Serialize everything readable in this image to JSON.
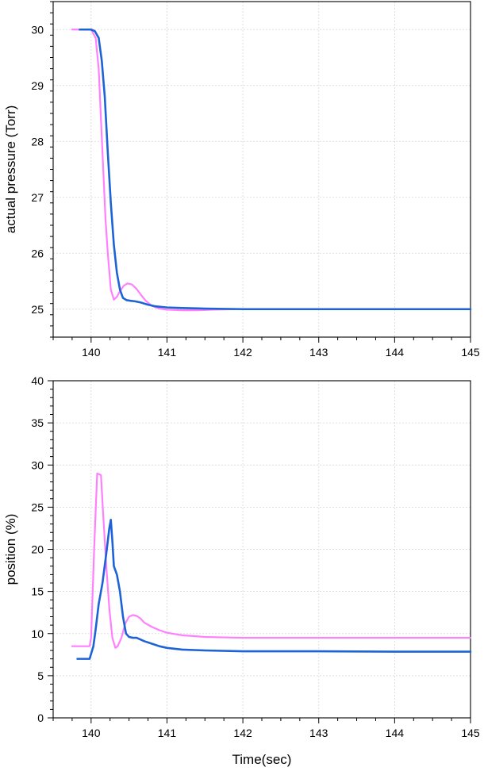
{
  "chart_data": [
    {
      "type": "line",
      "title": "",
      "xlabel": "",
      "ylabel": "actual pressure (Torr)",
      "xlim": [
        139.5,
        145
      ],
      "ylim": [
        24.5,
        30.5
      ],
      "xticks": [
        140,
        141,
        142,
        143,
        144,
        145
      ],
      "yticks": [
        25,
        26,
        27,
        28,
        29,
        30
      ],
      "grid": true,
      "series": [
        {
          "color": "#ff80ff",
          "x": [
            139.75,
            139.8,
            140.0,
            140.06,
            140.1,
            140.13,
            140.16,
            140.19,
            140.22,
            140.26,
            140.3,
            140.34,
            140.38,
            140.43,
            140.48,
            140.54,
            140.6,
            140.66,
            140.72,
            140.8,
            140.9,
            141.0,
            141.2,
            141.4,
            141.6,
            141.9
          ],
          "y": [
            30.0,
            30.0,
            30.0,
            29.85,
            29.3,
            28.4,
            27.5,
            26.6,
            26.0,
            25.35,
            25.17,
            25.22,
            25.32,
            25.42,
            25.46,
            25.44,
            25.36,
            25.25,
            25.15,
            25.06,
            25.01,
            24.99,
            24.98,
            24.98,
            24.99,
            25.0
          ]
        },
        {
          "color": "#1e63d6",
          "x": [
            139.85,
            139.9,
            140.0,
            140.05,
            140.1,
            140.14,
            140.18,
            140.22,
            140.26,
            140.3,
            140.34,
            140.38,
            140.42,
            140.47,
            140.52,
            140.58,
            140.65,
            140.75,
            140.85,
            141.0,
            141.2,
            141.5,
            142.0,
            143.0,
            144.0,
            145.0
          ],
          "y": [
            30.0,
            30.0,
            30.0,
            29.97,
            29.85,
            29.45,
            28.8,
            27.8,
            26.9,
            26.15,
            25.65,
            25.35,
            25.2,
            25.16,
            25.15,
            25.14,
            25.12,
            25.08,
            25.05,
            25.03,
            25.02,
            25.01,
            25.0,
            25.0,
            25.0,
            25.0
          ]
        }
      ]
    },
    {
      "type": "line",
      "title": "",
      "xlabel": "Time(sec)",
      "ylabel": "position (%)",
      "xlim": [
        139.5,
        145
      ],
      "ylim": [
        0,
        40
      ],
      "xticks": [
        140,
        141,
        142,
        143,
        144,
        145
      ],
      "yticks": [
        0,
        5,
        10,
        15,
        20,
        25,
        30,
        35,
        40
      ],
      "grid": true,
      "series": [
        {
          "color": "#ff80ff",
          "x": [
            139.75,
            139.9,
            139.98,
            140.0,
            140.04,
            140.08,
            140.13,
            140.16,
            140.2,
            140.24,
            140.28,
            140.32,
            140.35,
            140.4,
            140.45,
            140.5,
            140.55,
            140.6,
            140.65,
            140.7,
            140.8,
            140.9,
            141.0,
            141.2,
            141.5,
            142.0,
            143.0,
            144.0,
            145.0
          ],
          "y": [
            8.5,
            8.5,
            8.5,
            9.5,
            20.0,
            29.0,
            28.8,
            24.0,
            18.0,
            13.0,
            9.5,
            8.3,
            8.5,
            9.5,
            11.2,
            12.0,
            12.2,
            12.1,
            11.8,
            11.3,
            10.8,
            10.4,
            10.1,
            9.8,
            9.6,
            9.5,
            9.5,
            9.5,
            9.5
          ]
        },
        {
          "color": "#1e63d6",
          "x": [
            139.82,
            139.95,
            139.98,
            140.03,
            140.06,
            140.1,
            140.15,
            140.2,
            140.24,
            140.26,
            140.28,
            140.3,
            140.34,
            140.38,
            140.42,
            140.46,
            140.5,
            140.55,
            140.6,
            140.7,
            140.8,
            140.9,
            141.0,
            141.2,
            141.5,
            142.0,
            143.0,
            144.0,
            145.0
          ],
          "y": [
            7.0,
            7.0,
            7.0,
            8.5,
            10.5,
            13.5,
            16.0,
            19.5,
            22.5,
            23.5,
            21.0,
            18.0,
            17.0,
            15.0,
            12.0,
            10.0,
            9.6,
            9.5,
            9.5,
            9.1,
            8.8,
            8.5,
            8.3,
            8.1,
            8.0,
            7.9,
            7.9,
            7.85,
            7.85
          ]
        }
      ]
    }
  ]
}
